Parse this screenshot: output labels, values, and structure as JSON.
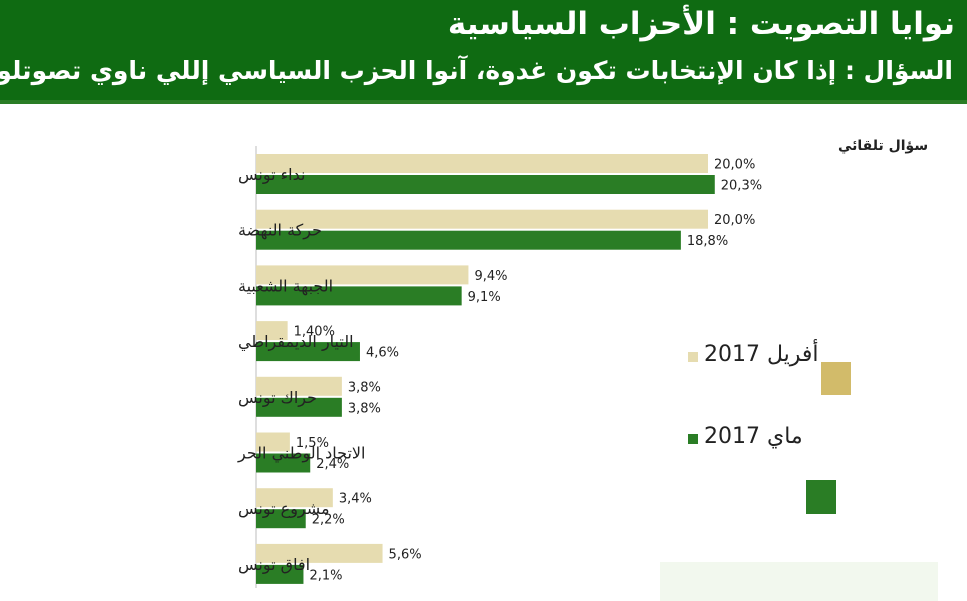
{
  "header": {
    "title": "نوايا التصويت : الأحزاب السياسية",
    "subtitle": "السؤال : إذا كان الإنتخابات تكون غدوة، آنوا الحزب السياسي إللي ناوي تصوتلو ؟"
  },
  "note": "سؤال تلقائي",
  "colors": {
    "header_bg": "#0f6b12",
    "april": "#e6dcb0",
    "may": "#2a7d25",
    "april_legend": "#d2bb6a"
  },
  "legend": {
    "april": "أفريل 2017",
    "may": "ماي 2017"
  },
  "chart_data": {
    "type": "bar",
    "orientation": "horizontal",
    "title": "نوايا التصويت : الأحزاب السياسية",
    "categories": [
      "نداء تونس",
      "حركة النهضة",
      "الجبهة الشعبية",
      "التيار الديمقراطي",
      "حراك تونس",
      "الاتحاد الوطني الحر",
      "مشروع تونس",
      "افاق تونس"
    ],
    "series": [
      {
        "name": "أفريل 2017",
        "values": [
          20.0,
          20.0,
          9.4,
          1.4,
          3.8,
          1.5,
          3.4,
          5.6
        ],
        "labels": [
          "20,0%",
          "20,0%",
          "9,4%",
          "1,40%",
          "3,8%",
          "1,5%",
          "3,4%",
          "5,6%"
        ]
      },
      {
        "name": "ماي 2017",
        "values": [
          20.3,
          18.8,
          9.1,
          4.6,
          3.8,
          2.4,
          2.2,
          2.1
        ],
        "labels": [
          "20,3%",
          "18,8%",
          "9,1%",
          "4,6%",
          "3,8%",
          "2,4%",
          "2,2%",
          "2,1%"
        ]
      }
    ],
    "xlim": [
      0,
      25
    ],
    "grid": false,
    "legend_position": "right"
  }
}
